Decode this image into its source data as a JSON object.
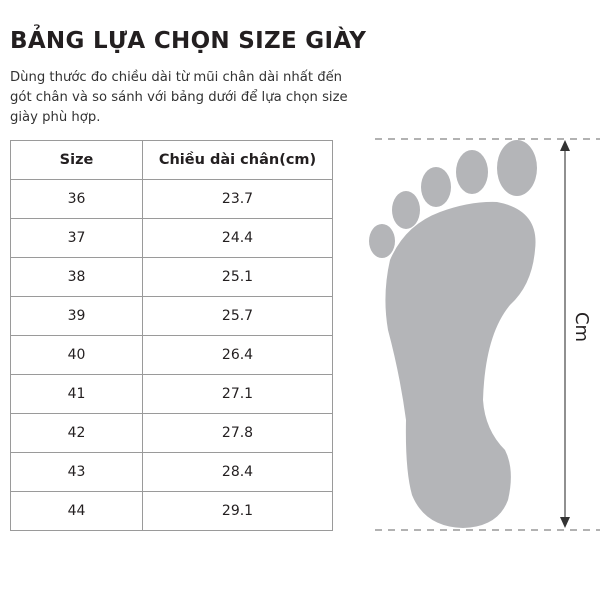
{
  "title": "BẢNG LỰA CHỌN SIZE GIÀY",
  "description": "Dùng thước đo chiều dài từ mũi chân dài nhất đến gót chân và so sánh với bảng dưới để lựa chọn size giày phù hợp.",
  "table": {
    "headers": [
      "Size",
      "Chiều dài chân(cm)"
    ],
    "rows": [
      [
        "36",
        "23.7"
      ],
      [
        "37",
        "24.4"
      ],
      [
        "38",
        "25.1"
      ],
      [
        "39",
        "25.7"
      ],
      [
        "40",
        "26.4"
      ],
      [
        "41",
        "27.1"
      ],
      [
        "42",
        "27.8"
      ],
      [
        "43",
        "28.4"
      ],
      [
        "44",
        "29.1"
      ]
    ]
  },
  "diagram": {
    "unit_label": "Cm",
    "foot_color": "#b4b5b8",
    "icon": "footprint-icon"
  }
}
